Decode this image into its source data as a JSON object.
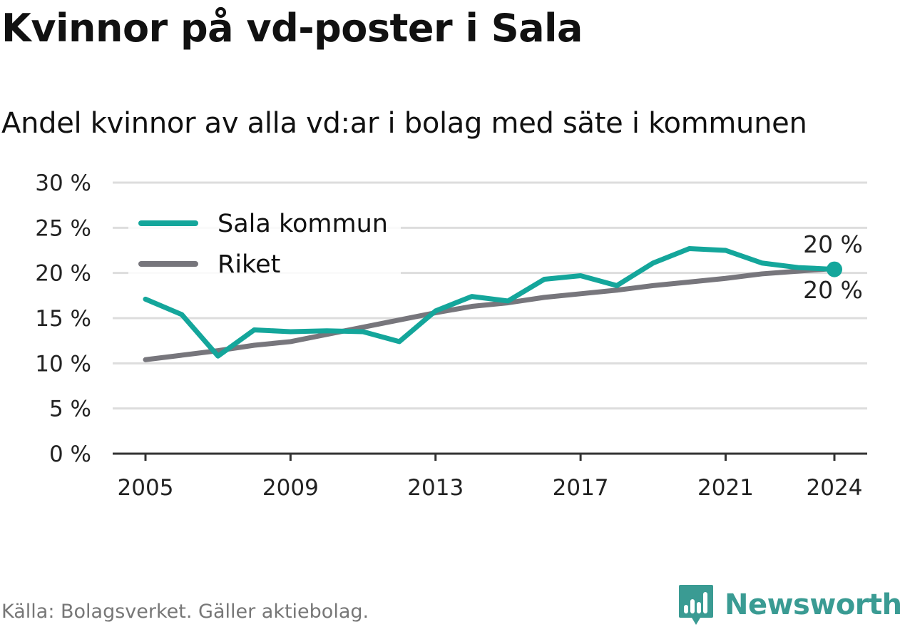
{
  "title": "Kvinnor på vd-poster i Sala",
  "subtitle": "Andel kvinnor av alla vd:ar i bolag med säte i kommunen",
  "source": "Källa: Bolagsverket. Gäller aktiebolag.",
  "logo": {
    "text": "Newsworthy",
    "icon": "newsworthy-logo-icon"
  },
  "colors": {
    "sala": "#14a69b",
    "riket": "#77767c",
    "grid": "#dddddd",
    "axis": "#333333"
  },
  "chart_data": {
    "type": "line",
    "x": [
      2005,
      2006,
      2007,
      2008,
      2009,
      2010,
      2011,
      2012,
      2013,
      2014,
      2015,
      2016,
      2017,
      2018,
      2019,
      2020,
      2021,
      2022,
      2023,
      2024
    ],
    "series": [
      {
        "name": "Sala kommun",
        "values": [
          17.1,
          15.4,
          10.8,
          13.7,
          13.5,
          13.6,
          13.5,
          12.4,
          15.8,
          17.4,
          16.9,
          19.3,
          19.7,
          18.6,
          21.1,
          22.7,
          22.5,
          21.1,
          20.6,
          20.4
        ]
      },
      {
        "name": "Riket",
        "values": [
          10.4,
          10.9,
          11.4,
          12.0,
          12.4,
          13.2,
          14.0,
          14.8,
          15.6,
          16.3,
          16.7,
          17.3,
          17.7,
          18.1,
          18.6,
          19.0,
          19.4,
          19.9,
          20.2,
          20.5
        ]
      }
    ],
    "xticks": [
      "2005",
      "2009",
      "2013",
      "2017",
      "2021",
      "2024"
    ],
    "yticks": [
      "0 %",
      "5 %",
      "10 %",
      "15 %",
      "20 %",
      "25 %",
      "30 %"
    ],
    "ylim": [
      0,
      30
    ],
    "end_labels": [
      "20 %",
      "20 %"
    ],
    "legend_position": "top-left",
    "grid": true
  }
}
